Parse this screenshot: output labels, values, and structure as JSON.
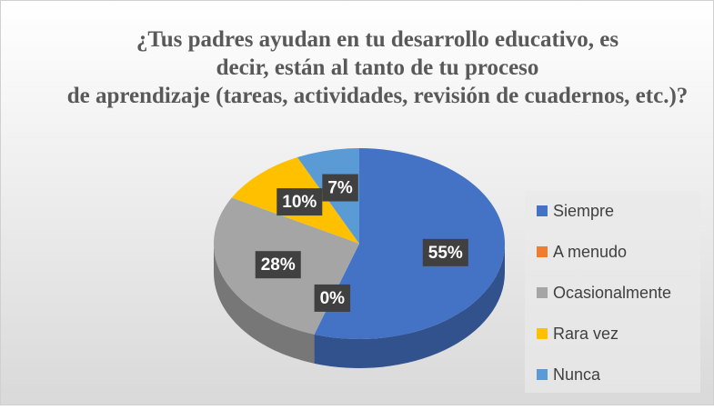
{
  "chart_data": {
    "type": "pie3d",
    "title": "¿Tus padres ayudan en tu desarrollo educativo, es decir, están al tanto de tu proceso de aprendizaje (tareas, actividades, revisión de cuadernos, etc.)?",
    "categories": [
      "Siempre",
      "A menudo",
      "Ocasionalmente",
      "Rara vez",
      "Nunca"
    ],
    "values": [
      55,
      0,
      28,
      10,
      7
    ],
    "value_labels": [
      "55%",
      "0%",
      "28%",
      "10%",
      "7%"
    ],
    "colors": [
      "#4472c4",
      "#ed7d31",
      "#a5a5a5",
      "#ffc000",
      "#5b9bd5"
    ],
    "legend": "right"
  }
}
